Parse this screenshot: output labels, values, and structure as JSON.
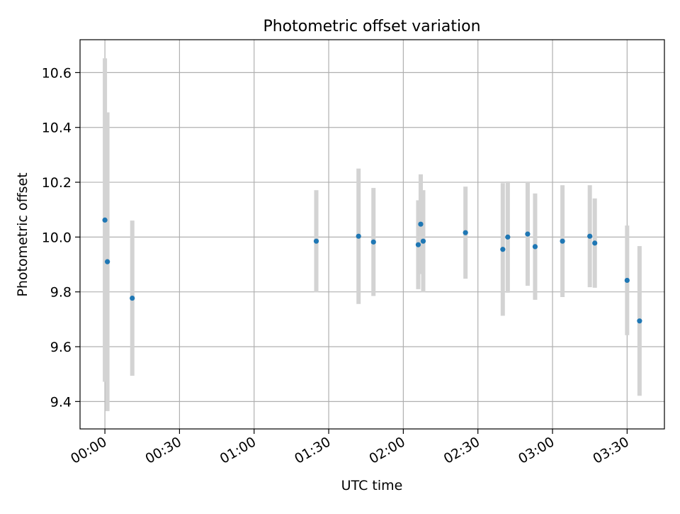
{
  "chart_data": {
    "type": "scatter",
    "title": "Photometric offset variation",
    "xlabel": "UTC time",
    "ylabel": "Photometric offset",
    "x_axis": {
      "kind": "time",
      "range": [
        "23:50",
        "03:45"
      ],
      "ticks": [
        "00:00",
        "00:30",
        "01:00",
        "01:30",
        "02:00",
        "02:30",
        "03:00",
        "03:30"
      ]
    },
    "y_axis": {
      "range": [
        9.3,
        10.72
      ],
      "ticks": [
        "9.4",
        "9.6",
        "9.8",
        "10.0",
        "10.2",
        "10.4",
        "10.6"
      ]
    },
    "grid": true,
    "marker_color": "#1f77b4",
    "errorbar_color": "#d3d3d3",
    "series": [
      {
        "points": [
          {
            "x": "00:00",
            "y": 10.062,
            "yerr": 0.59
          },
          {
            "x": "00:01",
            "y": 9.91,
            "yerr": 0.545
          },
          {
            "x": "00:11",
            "y": 9.777,
            "yerr": 0.283
          },
          {
            "x": "01:25",
            "y": 9.985,
            "yerr": 0.186
          },
          {
            "x": "01:42",
            "y": 10.003,
            "yerr": 0.247
          },
          {
            "x": "01:48",
            "y": 9.982,
            "yerr": 0.197
          },
          {
            "x": "02:06",
            "y": 9.972,
            "yerr": 0.162
          },
          {
            "x": "02:07",
            "y": 10.047,
            "yerr": 0.182
          },
          {
            "x": "02:08",
            "y": 9.985,
            "yerr": 0.186
          },
          {
            "x": "02:25",
            "y": 10.016,
            "yerr": 0.168
          },
          {
            "x": "02:40",
            "y": 9.955,
            "yerr": 0.242
          },
          {
            "x": "02:42",
            "y": 10.0,
            "yerr": 0.203
          },
          {
            "x": "02:50",
            "y": 10.011,
            "yerr": 0.189
          },
          {
            "x": "02:53",
            "y": 9.965,
            "yerr": 0.194
          },
          {
            "x": "03:04",
            "y": 9.985,
            "yerr": 0.204
          },
          {
            "x": "03:15",
            "y": 10.003,
            "yerr": 0.186
          },
          {
            "x": "03:17",
            "y": 9.978,
            "yerr": 0.163
          },
          {
            "x": "03:30",
            "y": 9.842,
            "yerr": 0.2
          },
          {
            "x": "03:35",
            "y": 9.694,
            "yerr": 0.273
          }
        ]
      }
    ]
  }
}
